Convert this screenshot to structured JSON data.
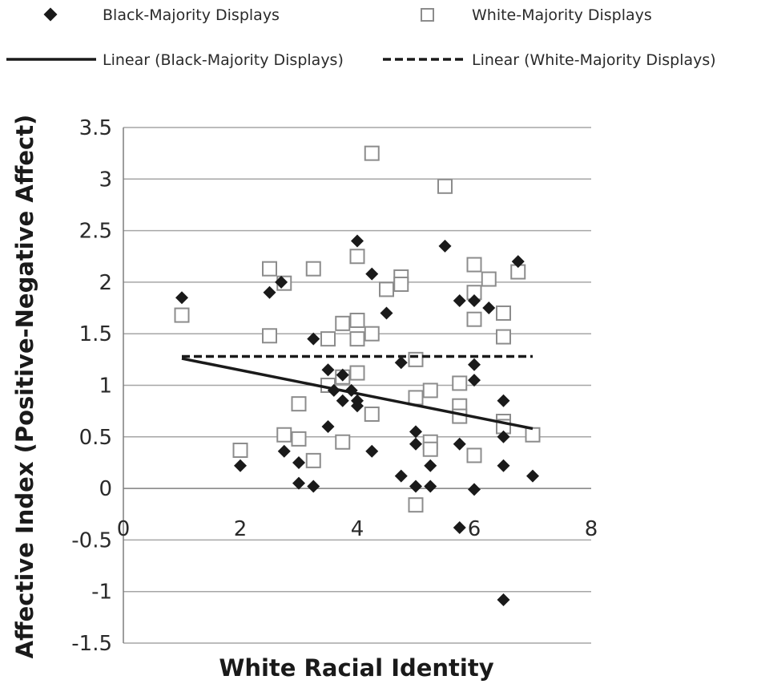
{
  "chart_data": {
    "type": "scatter",
    "title": "",
    "xlabel": "White Racial Identity",
    "ylabel": "Affective Index (Positive-Negative Affect)",
    "xlim": [
      0,
      8
    ],
    "ylim": [
      -1.5,
      3.5
    ],
    "x_ticks": [
      "0",
      "2",
      "4",
      "6",
      "8"
    ],
    "y_ticks": [
      "3.5",
      "3",
      "2.5",
      "2",
      "1.5",
      "1",
      "0.5",
      "0",
      "-0.5",
      "-1",
      "-1.5"
    ],
    "grid": "horizontal",
    "legend_position": "top",
    "series": [
      {
        "name": "Black-Majority Displays",
        "marker": "diamond",
        "color": "#1a1a1a",
        "points": [
          [
            1.0,
            1.85
          ],
          [
            2.0,
            0.22
          ],
          [
            2.5,
            1.9
          ],
          [
            2.7,
            2.0
          ],
          [
            2.75,
            0.36
          ],
          [
            3.0,
            0.25
          ],
          [
            3.0,
            0.05
          ],
          [
            3.25,
            0.02
          ],
          [
            3.25,
            1.45
          ],
          [
            3.5,
            0.6
          ],
          [
            3.5,
            1.15
          ],
          [
            3.6,
            0.95
          ],
          [
            3.75,
            0.85
          ],
          [
            3.75,
            1.1
          ],
          [
            3.9,
            0.95
          ],
          [
            4.0,
            2.4
          ],
          [
            4.0,
            0.85
          ],
          [
            4.0,
            0.8
          ],
          [
            4.25,
            2.08
          ],
          [
            4.25,
            0.36
          ],
          [
            4.5,
            1.7
          ],
          [
            4.75,
            1.22
          ],
          [
            4.75,
            0.12
          ],
          [
            5.0,
            0.55
          ],
          [
            5.0,
            0.43
          ],
          [
            5.0,
            0.02
          ],
          [
            5.25,
            0.22
          ],
          [
            5.25,
            0.02
          ],
          [
            5.5,
            2.35
          ],
          [
            5.75,
            1.82
          ],
          [
            5.75,
            0.43
          ],
          [
            5.75,
            -0.38
          ],
          [
            6.0,
            1.82
          ],
          [
            6.0,
            1.05
          ],
          [
            6.0,
            1.2
          ],
          [
            6.0,
            -0.01
          ],
          [
            6.25,
            1.75
          ],
          [
            6.5,
            0.85
          ],
          [
            6.5,
            0.5
          ],
          [
            6.5,
            0.22
          ],
          [
            6.5,
            -1.08
          ],
          [
            6.75,
            2.2
          ],
          [
            7.0,
            0.12
          ]
        ]
      },
      {
        "name": "White-Majority Displays",
        "marker": "square",
        "color": "#8c8c8c",
        "points": [
          [
            1.0,
            1.68
          ],
          [
            2.0,
            0.37
          ],
          [
            2.5,
            2.13
          ],
          [
            2.5,
            1.48
          ],
          [
            2.75,
            1.99
          ],
          [
            2.75,
            0.52
          ],
          [
            3.0,
            0.82
          ],
          [
            3.0,
            0.48
          ],
          [
            3.25,
            2.13
          ],
          [
            3.25,
            0.27
          ],
          [
            3.5,
            1.45
          ],
          [
            3.5,
            1.0
          ],
          [
            3.75,
            1.6
          ],
          [
            3.75,
            1.08
          ],
          [
            3.75,
            0.45
          ],
          [
            4.0,
            2.25
          ],
          [
            4.0,
            1.63
          ],
          [
            4.0,
            1.45
          ],
          [
            4.0,
            1.12
          ],
          [
            4.25,
            3.25
          ],
          [
            4.25,
            1.5
          ],
          [
            4.25,
            0.72
          ],
          [
            4.5,
            1.93
          ],
          [
            4.75,
            2.05
          ],
          [
            4.75,
            1.98
          ],
          [
            5.0,
            1.25
          ],
          [
            5.0,
            0.88
          ],
          [
            5.0,
            -0.16
          ],
          [
            5.25,
            0.95
          ],
          [
            5.25,
            0.45
          ],
          [
            5.25,
            0.38
          ],
          [
            5.5,
            2.93
          ],
          [
            5.75,
            1.02
          ],
          [
            5.75,
            0.8
          ],
          [
            5.75,
            0.7
          ],
          [
            6.0,
            2.17
          ],
          [
            6.0,
            1.9
          ],
          [
            6.0,
            1.64
          ],
          [
            6.0,
            0.32
          ],
          [
            6.25,
            2.03
          ],
          [
            6.5,
            1.7
          ],
          [
            6.5,
            1.47
          ],
          [
            6.5,
            0.65
          ],
          [
            6.5,
            0.6
          ],
          [
            6.75,
            2.1
          ],
          [
            7.0,
            0.52
          ]
        ]
      }
    ],
    "trendlines": [
      {
        "name": "Linear (Black-Majority Displays)",
        "style": "solid",
        "color": "#1a1a1a",
        "x": [
          1.0,
          7.0
        ],
        "y": [
          1.26,
          0.58
        ]
      },
      {
        "name": "Linear (White-Majority Displays)",
        "style": "dashed",
        "color": "#1a1a1a",
        "x": [
          1.0,
          7.0
        ],
        "y": [
          1.28,
          1.28
        ]
      }
    ]
  }
}
